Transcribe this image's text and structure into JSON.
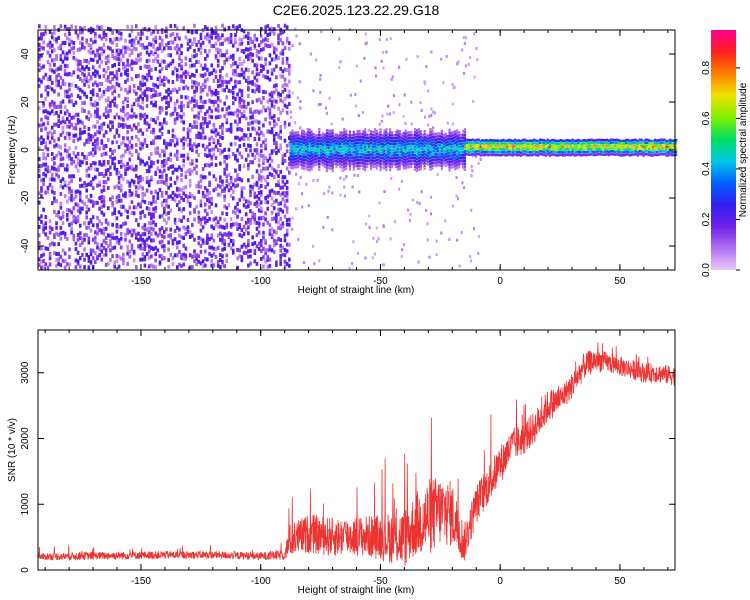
{
  "title": "C2E6.2025.123.22.29.G18",
  "colors": {
    "frame": "#000000",
    "snr_line": "#ee3333",
    "colorbar_stops": [
      "#e8c8f8",
      "#b070f0",
      "#7020e8",
      "#3020f0",
      "#0060ff",
      "#00c8e8",
      "#00e060",
      "#80f000",
      "#f0e000",
      "#ff8000",
      "#ff2020",
      "#ff0090"
    ]
  },
  "chart_data": [
    {
      "type": "heatmap",
      "name": "spectrogram",
      "xlabel": "Height of straight line (km)",
      "ylabel": "Frequency (Hz)",
      "xlim": [
        -193,
        73
      ],
      "ylim": [
        -50,
        50
      ],
      "xticks": [
        -150,
        -100,
        -50,
        0,
        50
      ],
      "yticks": [
        -40,
        -20,
        0,
        20,
        40
      ],
      "xtick_labels": [
        "-150",
        "-100",
        "-50",
        "0",
        "50"
      ],
      "ytick_labels": [
        "-40",
        "-20",
        "0",
        "20",
        "40"
      ],
      "colorbar": {
        "label": "Normalized spectral amplitude",
        "range": [
          0,
          0.95
        ],
        "ticks": [
          0.0,
          0.2,
          0.4,
          0.6,
          0.8
        ],
        "tick_labels": [
          "0.0",
          "0.2",
          "0.4",
          "0.6",
          "0.8"
        ]
      },
      "regions": [
        {
          "x_range": [
            -193,
            -88
          ],
          "description_value": "broadband noise",
          "freq_range": [
            -50,
            50
          ],
          "amplitude": [
            0.05,
            0.25
          ]
        },
        {
          "x_range": [
            -88,
            -15
          ],
          "freq_center": 0,
          "freq_halfwidth": 6,
          "amplitude": [
            0.2,
            0.55
          ]
        },
        {
          "x_range": [
            -15,
            73
          ],
          "freq_center": 1,
          "freq_halfwidth": 3,
          "amplitude": [
            0.4,
            0.9
          ]
        }
      ],
      "grid": false
    },
    {
      "type": "line",
      "name": "snr",
      "xlabel": "Height of straight line (km)",
      "ylabel": "SNR (10 * v/v)",
      "xlim": [
        -193,
        73
      ],
      "ylim": [
        0,
        3650
      ],
      "xticks": [
        -150,
        -100,
        -50,
        0,
        50
      ],
      "yticks": [
        0,
        1000,
        2000,
        3000
      ],
      "xtick_labels": [
        "-150",
        "-100",
        "-50",
        "0",
        "50"
      ],
      "ytick_labels": [
        "0",
        "1000",
        "2000",
        "3000"
      ],
      "x": [
        -193,
        -180,
        -160,
        -140,
        -120,
        -100,
        -90,
        -88,
        -80,
        -70,
        -60,
        -50,
        -40,
        -35,
        -30,
        -25,
        -20,
        -15,
        -10,
        -5,
        0,
        5,
        10,
        15,
        20,
        25,
        30,
        35,
        40,
        45,
        50,
        55,
        60,
        65,
        73
      ],
      "y": [
        200,
        210,
        220,
        230,
        230,
        210,
        230,
        450,
        550,
        500,
        520,
        500,
        480,
        700,
        800,
        900,
        850,
        400,
        1000,
        1300,
        1600,
        1900,
        2000,
        2200,
        2500,
        2600,
        2800,
        3100,
        3200,
        3150,
        3100,
        3050,
        3000,
        3000,
        2950
      ],
      "noise_amplitude": [
        50,
        60,
        60,
        60,
        60,
        60,
        80,
        250,
        300,
        300,
        300,
        350,
        450,
        500,
        600,
        550,
        500,
        300,
        300,
        300,
        300,
        250,
        250,
        250,
        250,
        200,
        200,
        200,
        180,
        150,
        150,
        150,
        150,
        150,
        150
      ],
      "grid": false
    }
  ]
}
